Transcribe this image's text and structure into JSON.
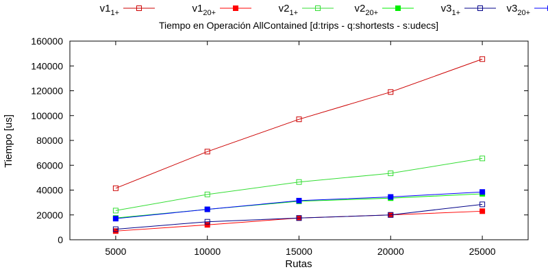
{
  "chart_data": {
    "type": "line",
    "title": "Tiempo en Operación AllContained [d:trips - q:shortests - s:udecs]",
    "xlabel": "Rutas",
    "ylabel": "Tiempo [us]",
    "x": [
      5000,
      10000,
      15000,
      20000,
      25000
    ],
    "xticks": [
      "5000",
      "10000",
      "15000",
      "20000",
      "25000"
    ],
    "xlim": [
      2500,
      27500
    ],
    "ylim": [
      0,
      160000
    ],
    "yticks": [
      "0",
      "20000",
      "40000",
      "60000",
      "80000",
      "100000",
      "120000",
      "140000",
      "160000"
    ],
    "grid": false,
    "legend_position": "top",
    "series": [
      {
        "name": "v1",
        "sub": "1+",
        "color": "#cc0000",
        "marker": "open-square",
        "values": [
          41500,
          71000,
          97000,
          119000,
          145500
        ]
      },
      {
        "name": "v1",
        "sub": "20+",
        "color": "#ff0000",
        "marker": "filled-square",
        "values": [
          7000,
          12000,
          17500,
          20000,
          23000
        ]
      },
      {
        "name": "v2",
        "sub": "1+",
        "color": "#33dd33",
        "marker": "open-square",
        "values": [
          23500,
          36500,
          46500,
          53500,
          65500
        ]
      },
      {
        "name": "v2",
        "sub": "20+",
        "color": "#00ee00",
        "marker": "filled-square",
        "values": [
          17500,
          24500,
          31000,
          33500,
          37000
        ]
      },
      {
        "name": "v3",
        "sub": "1+",
        "color": "#000088",
        "marker": "open-square",
        "values": [
          8500,
          14500,
          17500,
          20000,
          28500
        ]
      },
      {
        "name": "v3",
        "sub": "20+",
        "color": "#0000ff",
        "marker": "filled-square",
        "values": [
          17000,
          24500,
          31500,
          34500,
          38500
        ]
      }
    ]
  }
}
